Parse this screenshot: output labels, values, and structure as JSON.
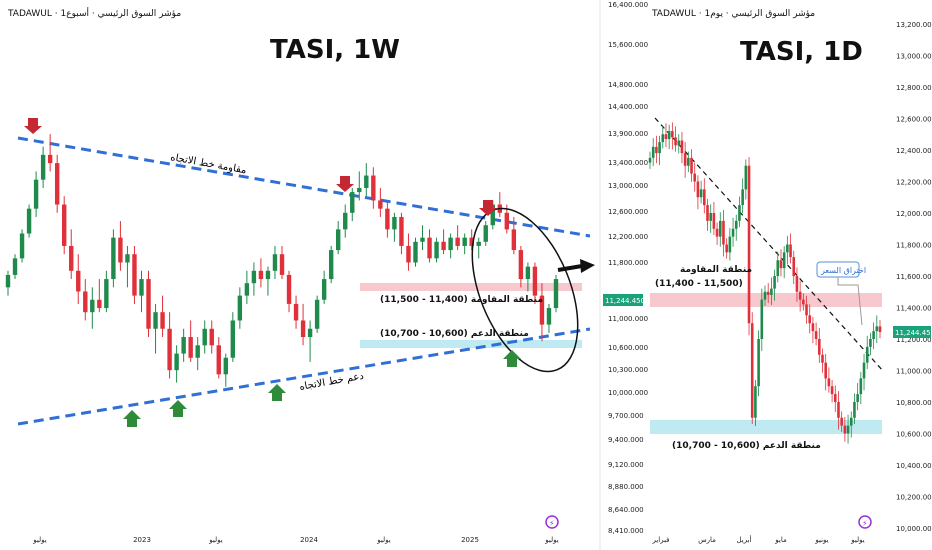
{
  "colors": {
    "up": "#1f8a4c",
    "down": "#e0303a",
    "trend": "#2f6fd6",
    "resistance_zone": "#f7c9cf",
    "support_zone": "#bfeaf2",
    "arrow_down": "#c62833",
    "arrow_up": "#2e8b3a",
    "price_badge": "#1aa37a",
    "icon_purple": "#9b30d9"
  },
  "chart_data": [
    {
      "type": "candlestick",
      "header": "TADAWUL · مؤشر السوق الرئيسي · أسبوع1",
      "title": "TASI, 1W",
      "x_ticks": [
        "يوليو",
        "2023",
        "يوليو",
        "2024",
        "يوليو",
        "2025",
        "يوليو"
      ],
      "trendline_resistance_label": "مقاومة خط الاتجاه",
      "trendline_support_label": "دعم خط الاتجاه",
      "resistance_zone_label": "منطقة المقاومة (11,400 - 11,500)",
      "support_zone_label": "منطقة الدعم (10,600 - 10,700)",
      "resistance_zone": [
        11400,
        11500
      ],
      "support_zone": [
        10600,
        10700
      ],
      "series_ohlc": [
        [
          11100,
          11300,
          11000,
          11250
        ],
        [
          11250,
          11500,
          11200,
          11450
        ],
        [
          11450,
          11800,
          11400,
          11750
        ],
        [
          11750,
          12100,
          11700,
          12050
        ],
        [
          12050,
          12500,
          11950,
          12400
        ],
        [
          12400,
          12800,
          12300,
          12700
        ],
        [
          12700,
          12950,
          12500,
          12600
        ],
        [
          12600,
          12700,
          12000,
          12100
        ],
        [
          12100,
          12200,
          11500,
          11600
        ],
        [
          11600,
          11800,
          11200,
          11300
        ],
        [
          11300,
          11500,
          10900,
          11050
        ],
        [
          11050,
          11200,
          10700,
          10800
        ],
        [
          10800,
          11100,
          10600,
          10950
        ],
        [
          10950,
          11200,
          10800,
          10850
        ],
        [
          10850,
          11300,
          10800,
          11200
        ],
        [
          11200,
          11800,
          11100,
          11700
        ],
        [
          11700,
          11900,
          11300,
          11400
        ],
        [
          11400,
          11600,
          11100,
          11500
        ],
        [
          11500,
          11600,
          10900,
          11000
        ],
        [
          11000,
          11300,
          10800,
          11200
        ],
        [
          11200,
          11300,
          10500,
          10600
        ],
        [
          10600,
          10900,
          10300,
          10800
        ],
        [
          10800,
          11000,
          10500,
          10600
        ],
        [
          10600,
          10800,
          10000,
          10100
        ],
        [
          10100,
          10400,
          9950,
          10300
        ],
        [
          10300,
          10600,
          10200,
          10500
        ],
        [
          10500,
          10700,
          10200,
          10250
        ],
        [
          10250,
          10500,
          10100,
          10400
        ],
        [
          10400,
          10700,
          10300,
          10600
        ],
        [
          10600,
          10700,
          10300,
          10400
        ],
        [
          10400,
          10500,
          10000,
          10050
        ],
        [
          10050,
          10300,
          9900,
          10250
        ],
        [
          10250,
          10800,
          10200,
          10700
        ],
        [
          10700,
          11100,
          10600,
          11000
        ],
        [
          11000,
          11300,
          10900,
          11150
        ],
        [
          11150,
          11400,
          11000,
          11300
        ],
        [
          11300,
          11450,
          11100,
          11200
        ],
        [
          11200,
          11350,
          11000,
          11300
        ],
        [
          11300,
          11600,
          11200,
          11500
        ],
        [
          11500,
          11600,
          11200,
          11250
        ],
        [
          11250,
          11300,
          10800,
          10900
        ],
        [
          10900,
          11000,
          10600,
          10700
        ],
        [
          10700,
          10900,
          10400,
          10500
        ],
        [
          10500,
          10700,
          10200,
          10600
        ],
        [
          10600,
          11000,
          10550,
          10950
        ],
        [
          10950,
          11300,
          10900,
          11200
        ],
        [
          11200,
          11600,
          11150,
          11550
        ],
        [
          11550,
          11900,
          11500,
          11800
        ],
        [
          11800,
          12100,
          11700,
          12000
        ],
        [
          12000,
          12300,
          11900,
          12250
        ],
        [
          12250,
          12500,
          12150,
          12300
        ],
        [
          12300,
          12600,
          12200,
          12450
        ],
        [
          12450,
          12550,
          12050,
          12150
        ],
        [
          12150,
          12300,
          11950,
          12050
        ],
        [
          12050,
          12150,
          11700,
          11800
        ],
        [
          11800,
          12000,
          11650,
          11950
        ],
        [
          11950,
          12000,
          11500,
          11600
        ],
        [
          11600,
          11750,
          11300,
          11400
        ],
        [
          11400,
          11700,
          11350,
          11650
        ],
        [
          11650,
          11850,
          11550,
          11700
        ],
        [
          11700,
          11800,
          11400,
          11450
        ],
        [
          11450,
          11700,
          11400,
          11650
        ],
        [
          11650,
          11800,
          11500,
          11550
        ],
        [
          11550,
          11750,
          11450,
          11700
        ],
        [
          11700,
          11850,
          11550,
          11600
        ],
        [
          11600,
          11750,
          11500,
          11700
        ],
        [
          11700,
          11800,
          11550,
          11600
        ],
        [
          11600,
          11700,
          11450,
          11650
        ],
        [
          11650,
          11900,
          11600,
          11850
        ],
        [
          11850,
          12150,
          11800,
          12100
        ],
        [
          12100,
          12250,
          11950,
          12000
        ],
        [
          12000,
          12100,
          11750,
          11800
        ],
        [
          11800,
          11950,
          11500,
          11550
        ],
        [
          11550,
          11600,
          11100,
          11200
        ],
        [
          11200,
          11400,
          11050,
          11350
        ],
        [
          11350,
          11400,
          10900,
          11000
        ],
        [
          11000,
          11150,
          10450,
          10650
        ],
        [
          10650,
          10900,
          10550,
          10850
        ],
        [
          10850,
          11250,
          10800,
          11200
        ]
      ],
      "x_years": [
        "2022-07",
        "2023",
        "2023-07",
        "2024",
        "2024-07",
        "2025",
        "2025-07"
      ]
    },
    {
      "type": "candlestick",
      "header": "TADAWUL · مؤشر السوق الرئيسي · يوم1",
      "title": "TASI, 1D",
      "x_ticks": [
        "فبراير",
        "مارس",
        "أبريل",
        "مايو",
        "يونيو",
        "يوليو"
      ],
      "y_ticks": [
        "13,200.000",
        "13,000.000",
        "12,800.000",
        "12,600.000",
        "12,400.000",
        "12,200.000",
        "12,000.000",
        "11,800.000",
        "11,600.000",
        "11,400.000",
        "11,200.000",
        "11,000.000",
        "10,800.000",
        "10,600.000",
        "10,400.000",
        "10,200.000",
        "10,000.000"
      ],
      "left_ticks": [
        "16,400.000",
        "15,600.000",
        "14,800.000",
        "14,400.000",
        "13,900.000",
        "13,400.000",
        "13,000.000",
        "12,600.000",
        "12,200.000",
        "11,800.000",
        "11,244.450",
        "11,000.000",
        "10,600.000",
        "10,300.000",
        "10,000.000",
        "9,700.000",
        "9,400.000",
        "9,120.000",
        "8,880.000",
        "8,640.000",
        "8,410.000"
      ],
      "last_price": "11,244.450",
      "resistance_zone_label": "منطقة المقاومة\n(11,400 - 11,500)",
      "support_zone_label": "منطقة الدعم (10,600 - 10,700)",
      "breakout_label": "اختراق السعر",
      "resistance_zone": [
        11400,
        11500
      ],
      "support_zone": [
        10600,
        10700
      ],
      "ylim": [
        10000,
        13200
      ]
    }
  ]
}
